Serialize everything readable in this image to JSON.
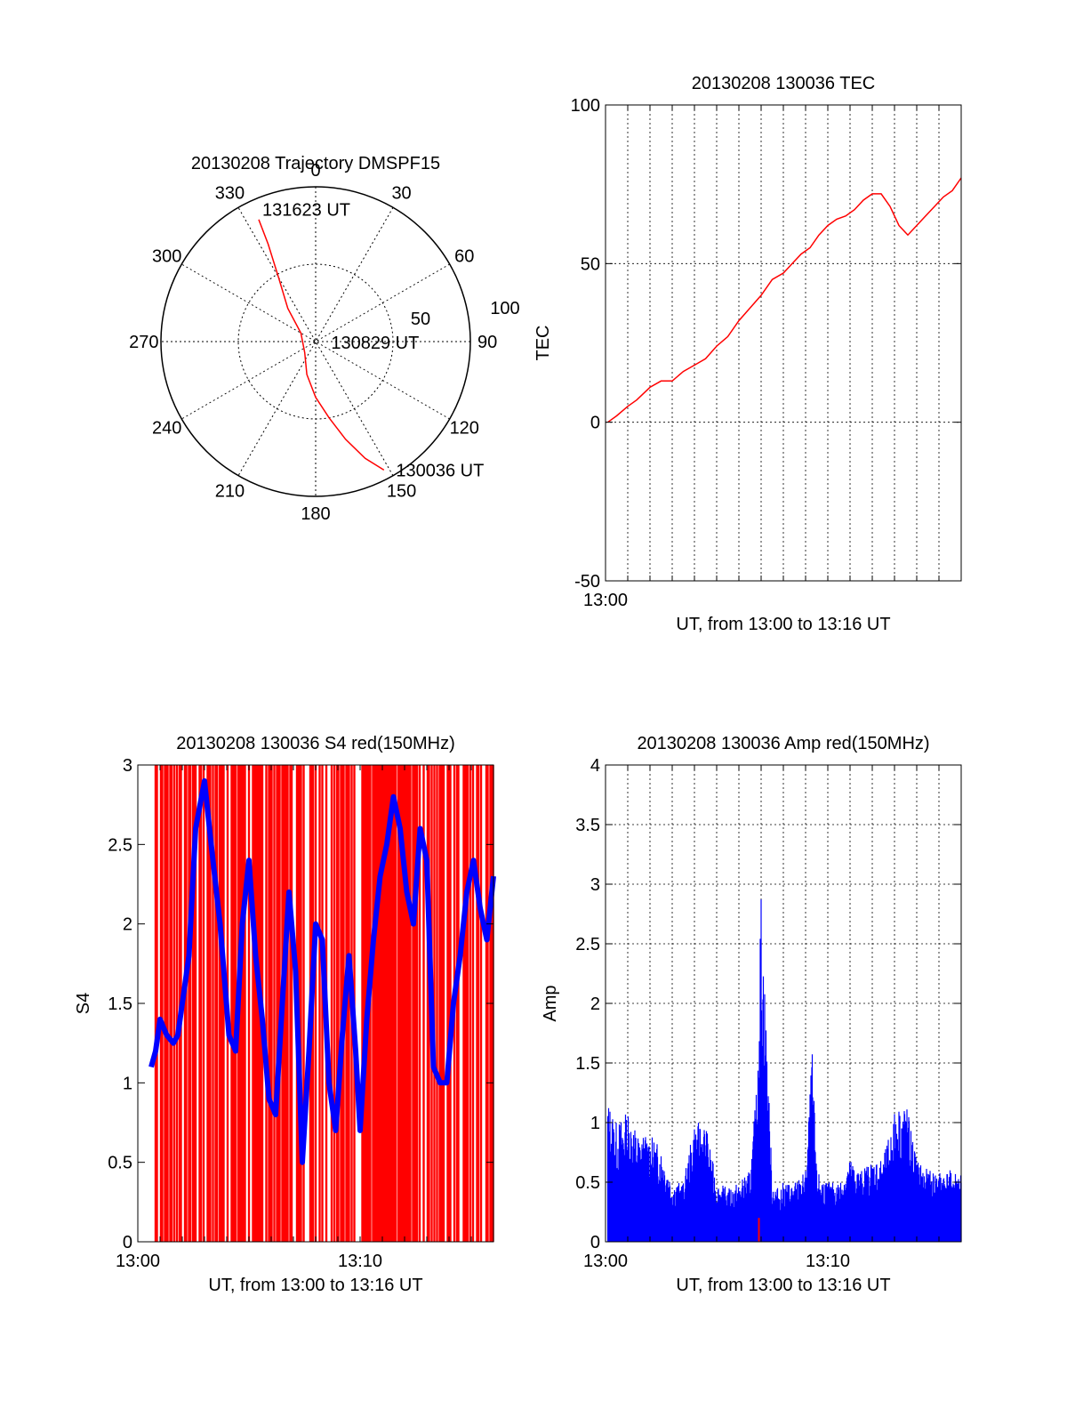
{
  "chart_data": [
    {
      "type": "polar",
      "title": "20130208 Trajectory DMSPF15",
      "azimuth_labels": [
        "0",
        "30",
        "60",
        "90",
        "120",
        "150",
        "180",
        "210",
        "240",
        "270",
        "300",
        "330"
      ],
      "radial_labels": [
        "50",
        "100"
      ],
      "track_color": "#ff0000",
      "trajectory": [
        {
          "az": 152,
          "r": 94
        },
        {
          "az": 157,
          "r": 82
        },
        {
          "az": 163,
          "r": 66
        },
        {
          "az": 170,
          "r": 50
        },
        {
          "az": 180,
          "r": 36
        },
        {
          "az": 195,
          "r": 22
        },
        {
          "az": 225,
          "r": 10
        },
        {
          "az": 300,
          "r": 11
        },
        {
          "az": 320,
          "r": 28
        },
        {
          "az": 330,
          "r": 48
        },
        {
          "az": 334,
          "r": 70
        },
        {
          "az": 335,
          "r": 87
        }
      ],
      "annotations": [
        {
          "text": "131623 UT",
          "az": 338,
          "r": 92
        },
        {
          "text": "130829 UT",
          "az": 93,
          "r": 10
        },
        {
          "text": "130036 UT",
          "az": 148,
          "r": 98
        }
      ]
    },
    {
      "type": "line",
      "title": "20130208 130036 TEC",
      "xlabel": "UT, from 13:00 to 13:16 UT",
      "ylabel": "TEC",
      "xlim": [
        0,
        16
      ],
      "ylim": [
        -50,
        100
      ],
      "yticks": [
        "100",
        "50",
        "0",
        "-50"
      ],
      "xtick_labels": [
        "13:00"
      ],
      "grid": true,
      "series": [
        {
          "color": "#ff0000",
          "x": [
            0.1,
            0.5,
            1.0,
            1.4,
            1.7,
            2.0,
            2.5,
            3.0,
            3.5,
            4.0,
            4.5,
            5.0,
            5.5,
            6.0,
            6.5,
            7.0,
            7.5,
            8.0,
            8.4,
            8.8,
            9.2,
            9.6,
            10.0,
            10.4,
            10.8,
            11.2,
            11.6,
            12.0,
            12.4,
            12.8,
            13.2,
            13.6,
            14.0,
            14.4,
            14.8,
            15.2,
            15.6,
            16.0
          ],
          "y": [
            0,
            2,
            5,
            7,
            9,
            11,
            13,
            13,
            16,
            18,
            20,
            24,
            27,
            32,
            36,
            40,
            45,
            47,
            50,
            53,
            55,
            59,
            62,
            64,
            65,
            67,
            70,
            72,
            72,
            68,
            62,
            59,
            62,
            65,
            68,
            71,
            73,
            77
          ]
        }
      ]
    },
    {
      "type": "area",
      "title": "20130208 130036 S4 red(150MHz)",
      "xlabel": "UT, from 13:00 to 13:16 UT",
      "ylabel": "S4",
      "xlim": [
        0,
        16
      ],
      "ylim": [
        0,
        3
      ],
      "yticks": [
        "3",
        "2.5",
        "2",
        "1.5",
        "1",
        "0.5",
        "0"
      ],
      "xtick_labels": [
        "13:00",
        "13:10"
      ],
      "grid": false,
      "series": [
        {
          "name": "",
          "color": "#ff0000",
          "style": "dense vertical spikes"
        },
        {
          "color": "#0000ff",
          "x": [
            0.6,
            0.8,
            1.0,
            1.3,
            1.6,
            1.8,
            2.0,
            2.3,
            2.6,
            3.0,
            3.3,
            3.7,
            4.1,
            4.4,
            4.7,
            5.0,
            5.3,
            5.6,
            5.9,
            6.2,
            6.5,
            6.8,
            7.1,
            7.4,
            7.7,
            8.0,
            8.3,
            8.6,
            8.9,
            9.2,
            9.5,
            9.8,
            10.0,
            10.3,
            10.6,
            10.9,
            11.2,
            11.5,
            11.8,
            12.1,
            12.4,
            12.7,
            13.0,
            13.3,
            13.6,
            13.9,
            14.2,
            14.5,
            14.8,
            15.1,
            15.4,
            15.7,
            16.0
          ],
          "y": [
            1.1,
            1.2,
            1.4,
            1.3,
            1.25,
            1.3,
            1.5,
            1.8,
            2.6,
            2.9,
            2.5,
            2.0,
            1.3,
            1.2,
            2.0,
            2.4,
            1.8,
            1.4,
            0.9,
            0.8,
            1.5,
            2.2,
            1.7,
            0.5,
            1.2,
            2.0,
            1.9,
            1.0,
            0.7,
            1.3,
            1.8,
            1.2,
            0.7,
            1.4,
            1.9,
            2.3,
            2.5,
            2.8,
            2.6,
            2.2,
            2.0,
            2.6,
            2.4,
            1.1,
            1.0,
            1.0,
            1.5,
            1.8,
            2.2,
            2.4,
            2.1,
            1.9,
            2.3
          ]
        }
      ]
    },
    {
      "type": "area",
      "title": "20130208 130036 Amp red(150MHz)",
      "xlabel": "UT, from 13:00 to 13:16 UT",
      "ylabel": "Amp",
      "xlim": [
        0,
        16
      ],
      "ylim": [
        0,
        4
      ],
      "yticks": [
        "4",
        "3.5",
        "3",
        "2.5",
        "2",
        "1.5",
        "1",
        "0.5",
        "0"
      ],
      "xtick_labels": [
        "13:00",
        "13:10"
      ],
      "grid": true,
      "series": [
        {
          "color": "#0000ff",
          "x": [
            0.1,
            0.5,
            1.0,
            1.5,
            2.0,
            2.5,
            3.0,
            3.5,
            4.0,
            4.5,
            5.0,
            5.5,
            6.0,
            6.5,
            6.8,
            7.0,
            7.5,
            7.8,
            8.0,
            8.5,
            9.0,
            9.3,
            9.5,
            10.0,
            10.5,
            11.0,
            11.5,
            12.0,
            12.5,
            13.0,
            13.5,
            14.0,
            14.5,
            15.0,
            15.5,
            16.0
          ],
          "y": [
            1.2,
            1.0,
            1.1,
            0.9,
            0.9,
            0.8,
            0.5,
            0.5,
            1.0,
            1.0,
            0.5,
            0.45,
            0.5,
            0.6,
            1.3,
            3.0,
            0.5,
            0.45,
            0.5,
            0.5,
            0.6,
            1.6,
            0.6,
            0.5,
            0.5,
            0.7,
            0.6,
            0.7,
            0.7,
            1.1,
            1.2,
            0.7,
            0.6,
            0.6,
            0.6,
            0.6
          ]
        },
        {
          "color": "#ff0000",
          "x": [
            6.9
          ],
          "y": [
            0.2
          ]
        }
      ]
    }
  ]
}
